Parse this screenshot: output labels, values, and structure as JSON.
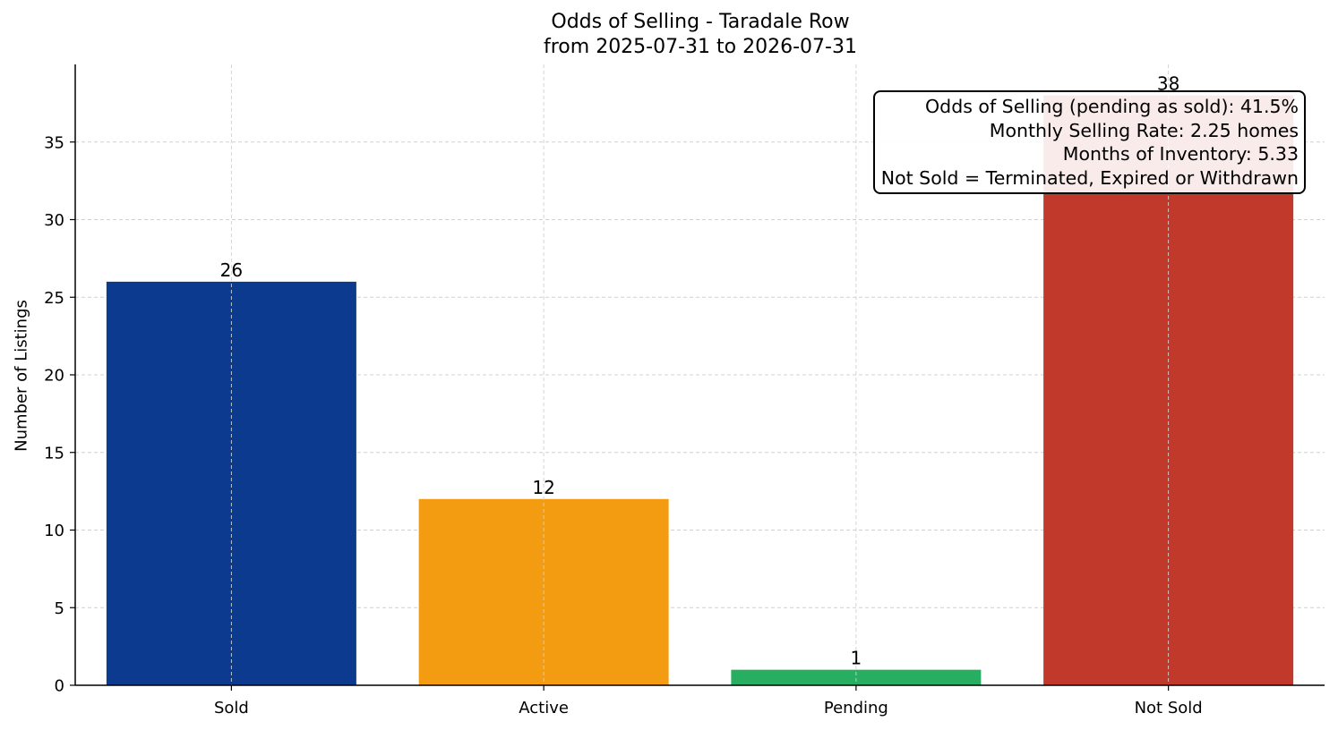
{
  "chart_data": {
    "type": "bar",
    "title": "Odds of Selling - Taradale Row",
    "subtitle": "from 2025-07-31 to 2026-07-31",
    "xlabel": "",
    "ylabel": "Number of Listings",
    "categories": [
      "Sold",
      "Active",
      "Pending",
      "Not Sold"
    ],
    "values": [
      26,
      12,
      1,
      38
    ],
    "colors": [
      "#0b3a8e",
      "#f39c12",
      "#27ae60",
      "#c0392b"
    ],
    "data_labels": [
      "26",
      "12",
      "1",
      "38"
    ],
    "ylim": [
      0,
      40
    ],
    "yticks": [
      0,
      5,
      10,
      15,
      20,
      25,
      30,
      35
    ],
    "grid": true,
    "annotation": {
      "lines": [
        "Odds of Selling (pending as sold): 41.5%",
        "Monthly Selling Rate: 2.25 homes",
        "Months of Inventory: 5.33",
        "Not Sold = Terminated, Expired or Withdrawn"
      ],
      "placement": "top-right"
    }
  }
}
